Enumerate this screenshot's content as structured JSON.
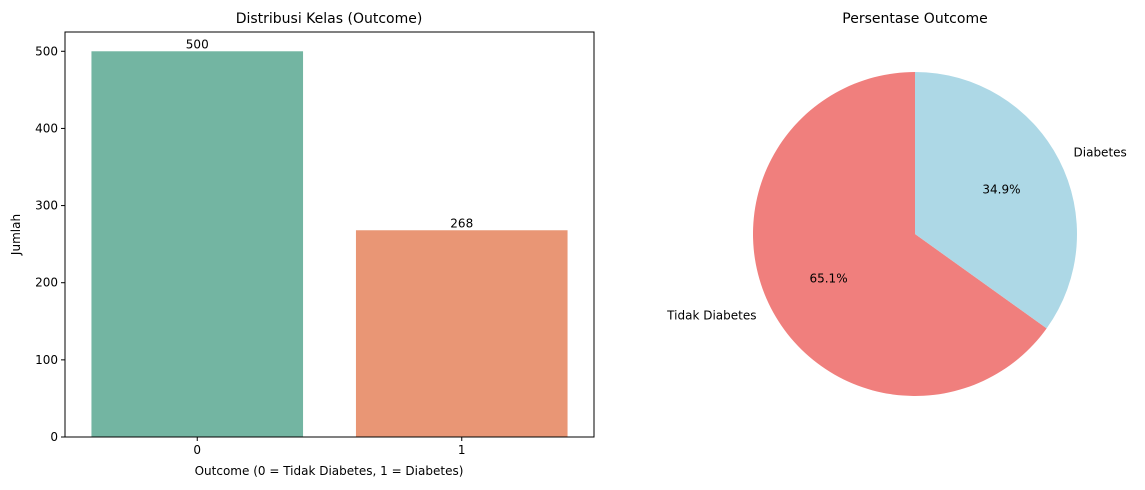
{
  "chart_data": [
    {
      "type": "bar",
      "title": "Distribusi Kelas (Outcome)",
      "xlabel": "Outcome (0 = Tidak Diabetes, 1 = Diabetes)",
      "ylabel": "Jumlah",
      "categories": [
        "0",
        "1"
      ],
      "values": [
        500,
        268
      ],
      "data_labels": [
        "500",
        "268"
      ],
      "colors": [
        "#73b5a2",
        "#e99675"
      ],
      "ylim": [
        0,
        525
      ],
      "yticks": [
        0,
        100,
        200,
        300,
        400,
        500
      ],
      "grid": false
    },
    {
      "type": "pie",
      "title": "Persentase Outcome",
      "labels": [
        "Tidak Diabetes",
        "Diabetes"
      ],
      "values": [
        65.1,
        34.9
      ],
      "pct_labels": [
        "65.1%",
        "34.9%"
      ],
      "colors": [
        "#f07f7d",
        "#add8e6"
      ]
    }
  ]
}
